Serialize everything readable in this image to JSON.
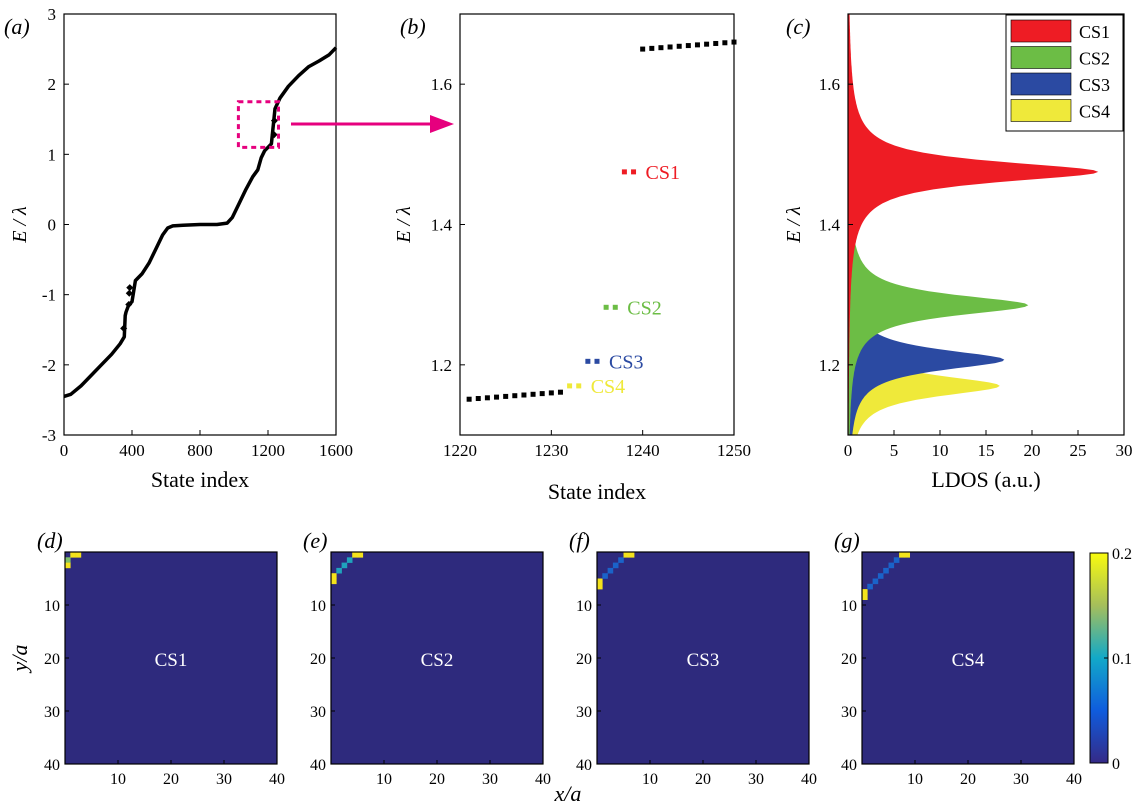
{
  "figure": {
    "panel_labels": [
      "(a)",
      "(b)",
      "(c)",
      "(d)",
      "(e)",
      "(f)",
      "(g)"
    ],
    "energy_axis_label": "E / λ",
    "state_index_label": "State index",
    "ldos_label": "LDOS (a.u.)",
    "x_over_a_label": "x/a",
    "y_over_a_label": "y/a"
  },
  "colors": {
    "CS1": "#ee1c24",
    "CS2": "#6cbd45",
    "CS3": "#2b4aa2",
    "CS4": "#efe93a",
    "zoom_box": "#e6007e",
    "map_background": "#2e2a7d",
    "markers": "#000000"
  },
  "chart_data": [
    {
      "panel": "(a)",
      "type": "scatter",
      "xlabel": "State index",
      "ylabel": "E / λ",
      "xlim": [
        0,
        1600
      ],
      "ylim": [
        -3,
        3
      ],
      "xticks": [
        0,
        400,
        800,
        1200,
        1600
      ],
      "yticks": [
        -3,
        -2,
        -1,
        0,
        1,
        2,
        3
      ],
      "curve": [
        [
          0,
          -2.45
        ],
        [
          40,
          -2.42
        ],
        [
          100,
          -2.3
        ],
        [
          160,
          -2.15
        ],
        [
          220,
          -2.0
        ],
        [
          280,
          -1.85
        ],
        [
          330,
          -1.7
        ],
        [
          355,
          -1.6
        ],
        [
          360,
          -1.3
        ],
        [
          365,
          -1.25
        ],
        [
          380,
          -1.15
        ],
        [
          400,
          -1.1
        ],
        [
          420,
          -0.8
        ],
        [
          460,
          -0.7
        ],
        [
          500,
          -0.55
        ],
        [
          540,
          -0.35
        ],
        [
          580,
          -0.15
        ],
        [
          610,
          -0.05
        ],
        [
          640,
          -0.02
        ],
        [
          700,
          -0.01
        ],
        [
          800,
          0.0
        ],
        [
          900,
          0.0
        ],
        [
          960,
          0.02
        ],
        [
          990,
          0.1
        ],
        [
          1030,
          0.3
        ],
        [
          1070,
          0.5
        ],
        [
          1110,
          0.68
        ],
        [
          1140,
          0.78
        ],
        [
          1160,
          0.95
        ],
        [
          1180,
          1.05
        ],
        [
          1200,
          1.1
        ],
        [
          1220,
          1.15
        ],
        [
          1241,
          1.65
        ],
        [
          1270,
          1.8
        ],
        [
          1320,
          1.97
        ],
        [
          1380,
          2.12
        ],
        [
          1440,
          2.25
        ],
        [
          1500,
          2.33
        ],
        [
          1560,
          2.42
        ],
        [
          1600,
          2.52
        ]
      ],
      "isolated_points": [
        [
          351,
          -1.48
        ],
        [
          381,
          -1.14
        ],
        [
          384,
          -0.98
        ],
        [
          387,
          -0.9
        ],
        [
          1236,
          1.28
        ],
        [
          1238,
          1.48
        ]
      ],
      "zoom_box": {
        "x": [
          1220,
          1250
        ],
        "y": [
          1.1,
          1.75
        ]
      }
    },
    {
      "panel": "(b)",
      "type": "scatter",
      "xlabel": "State index",
      "ylabel": "E / λ",
      "xlim": [
        1220,
        1250
      ],
      "ylim": [
        1.1,
        1.7
      ],
      "xticks": [
        1220,
        1230,
        1240,
        1250
      ],
      "yticks": [
        1.2,
        1.4,
        1.6
      ],
      "series": [
        {
          "name": "",
          "color": "#000000",
          "points": [
            [
              1221,
              1.151
            ],
            [
              1222,
              1.152
            ],
            [
              1223,
              1.153
            ],
            [
              1224,
              1.154
            ],
            [
              1225,
              1.155
            ],
            [
              1226,
              1.156
            ],
            [
              1227,
              1.157
            ],
            [
              1228,
              1.158
            ],
            [
              1229,
              1.159
            ],
            [
              1230,
              1.16
            ],
            [
              1231,
              1.161
            ],
            [
              1240,
              1.65
            ],
            [
              1241,
              1.651
            ],
            [
              1242,
              1.652
            ],
            [
              1243,
              1.653
            ],
            [
              1244,
              1.654
            ],
            [
              1245,
              1.655
            ],
            [
              1246,
              1.656
            ],
            [
              1247,
              1.657
            ],
            [
              1248,
              1.658
            ],
            [
              1249,
              1.659
            ],
            [
              1250,
              1.66
            ]
          ]
        },
        {
          "name": "CS1",
          "color": "#ee1c24",
          "points": [
            [
              1238,
              1.475
            ],
            [
              1239,
              1.475
            ]
          ]
        },
        {
          "name": "CS2",
          "color": "#6cbd45",
          "points": [
            [
              1236,
              1.282
            ],
            [
              1237,
              1.282
            ]
          ]
        },
        {
          "name": "CS3",
          "color": "#2b4aa2",
          "points": [
            [
              1234,
              1.205
            ],
            [
              1235,
              1.205
            ]
          ]
        },
        {
          "name": "CS4",
          "color": "#efe93a",
          "points": [
            [
              1232,
              1.17
            ],
            [
              1233,
              1.17
            ]
          ]
        }
      ]
    },
    {
      "panel": "(c)",
      "type": "area",
      "xlabel": "LDOS (a.u.)",
      "ylabel": "E / λ",
      "xlim": [
        0,
        30
      ],
      "ylim": [
        1.1,
        1.7
      ],
      "xticks": [
        0,
        5,
        10,
        15,
        20,
        25,
        30
      ],
      "yticks": [
        1.2,
        1.4,
        1.6
      ],
      "legend": {
        "placement": "top-right",
        "entries": [
          "CS1",
          "CS2",
          "CS3",
          "CS4"
        ]
      },
      "series": [
        {
          "name": "CS1",
          "peak_energy": 1.475,
          "peak_ldos": 27.2,
          "width": 0.018
        },
        {
          "name": "CS2",
          "peak_energy": 1.285,
          "peak_ldos": 19.6,
          "width": 0.018
        },
        {
          "name": "CS3",
          "peak_energy": 1.207,
          "peak_ldos": 17.0,
          "width": 0.018
        },
        {
          "name": "CS4",
          "peak_energy": 1.17,
          "peak_ldos": 16.5,
          "width": 0.018
        }
      ]
    },
    {
      "panel": "(d)-(g)",
      "type": "heatmap",
      "xlabel": "x/a",
      "ylabel": "y/a",
      "xlim": [
        0,
        40
      ],
      "ylim": [
        0,
        40
      ],
      "ticks": [
        10,
        20,
        30,
        40
      ],
      "colorbar": {
        "min": 0,
        "max": 0.2,
        "ticks": [
          0,
          0.1,
          0.2
        ]
      },
      "maps": [
        {
          "panel": "(d)",
          "label": "CS1",
          "cells": [
            [
              1,
              2,
              0.16
            ],
            [
              1,
              3,
              0.2
            ],
            [
              2,
              1,
              0.2
            ],
            [
              3,
              1,
              0.2
            ]
          ]
        },
        {
          "panel": "(e)",
          "label": "CS2",
          "cells": [
            [
              1,
              5,
              0.19
            ],
            [
              2,
              4,
              0.12
            ],
            [
              3,
              3,
              0.11
            ],
            [
              4,
              2,
              0.12
            ],
            [
              5,
              1,
              0.19
            ],
            [
              1,
              6,
              0.2
            ],
            [
              6,
              1,
              0.2
            ]
          ]
        },
        {
          "panel": "(f)",
          "label": "CS3",
          "cells": [
            [
              1,
              6,
              0.18
            ],
            [
              2,
              5,
              0.06
            ],
            [
              3,
              4,
              0.05
            ],
            [
              4,
              3,
              0.05
            ],
            [
              5,
              2,
              0.06
            ],
            [
              6,
              1,
              0.18
            ],
            [
              1,
              7,
              0.2
            ],
            [
              7,
              1,
              0.2
            ]
          ]
        },
        {
          "panel": "(g)",
          "label": "CS4",
          "cells": [
            [
              1,
              8,
              0.18
            ],
            [
              2,
              7,
              0.04
            ],
            [
              3,
              6,
              0.04
            ],
            [
              4,
              5,
              0.04
            ],
            [
              5,
              4,
              0.04
            ],
            [
              6,
              3,
              0.04
            ],
            [
              7,
              2,
              0.04
            ],
            [
              8,
              1,
              0.18
            ],
            [
              1,
              9,
              0.2
            ],
            [
              9,
              1,
              0.2
            ]
          ]
        }
      ]
    }
  ]
}
